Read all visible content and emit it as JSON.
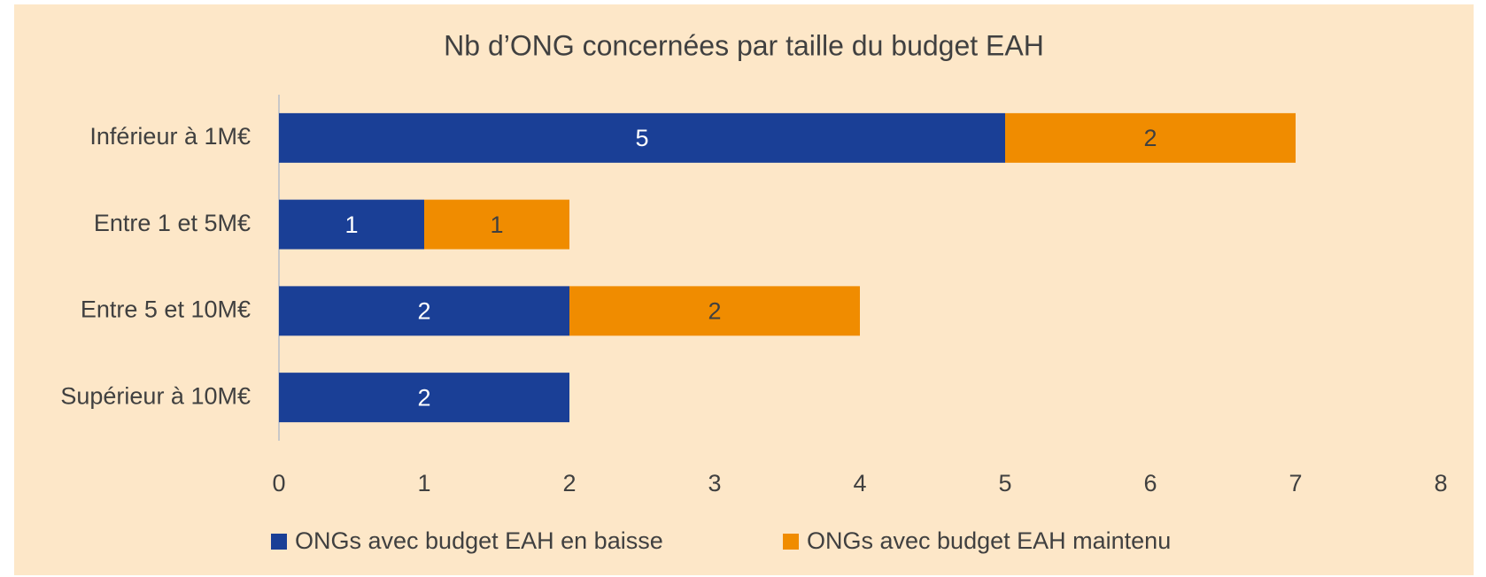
{
  "chart_data": {
    "type": "stacked_bar_horizontal",
    "title": "Nb d’ONG concernées par taille du budget EAH",
    "categories": [
      "Inférieur à 1M€",
      "Entre 1 et 5M€",
      "Entre 5 et 10M€",
      "Supérieur à 10M€"
    ],
    "series": [
      {
        "name": "ONGs avec budget EAH en baisse",
        "color": "#1a3f96",
        "values": [
          5,
          1,
          2,
          2
        ]
      },
      {
        "name": "ONGs avec budget EAH maintenu",
        "color": "#f08c00",
        "values": [
          2,
          1,
          2,
          null
        ]
      }
    ],
    "xlim": [
      0,
      8
    ],
    "xticks": [
      0,
      1,
      2,
      3,
      4,
      5,
      6,
      7,
      8
    ],
    "legend": "bottom"
  }
}
